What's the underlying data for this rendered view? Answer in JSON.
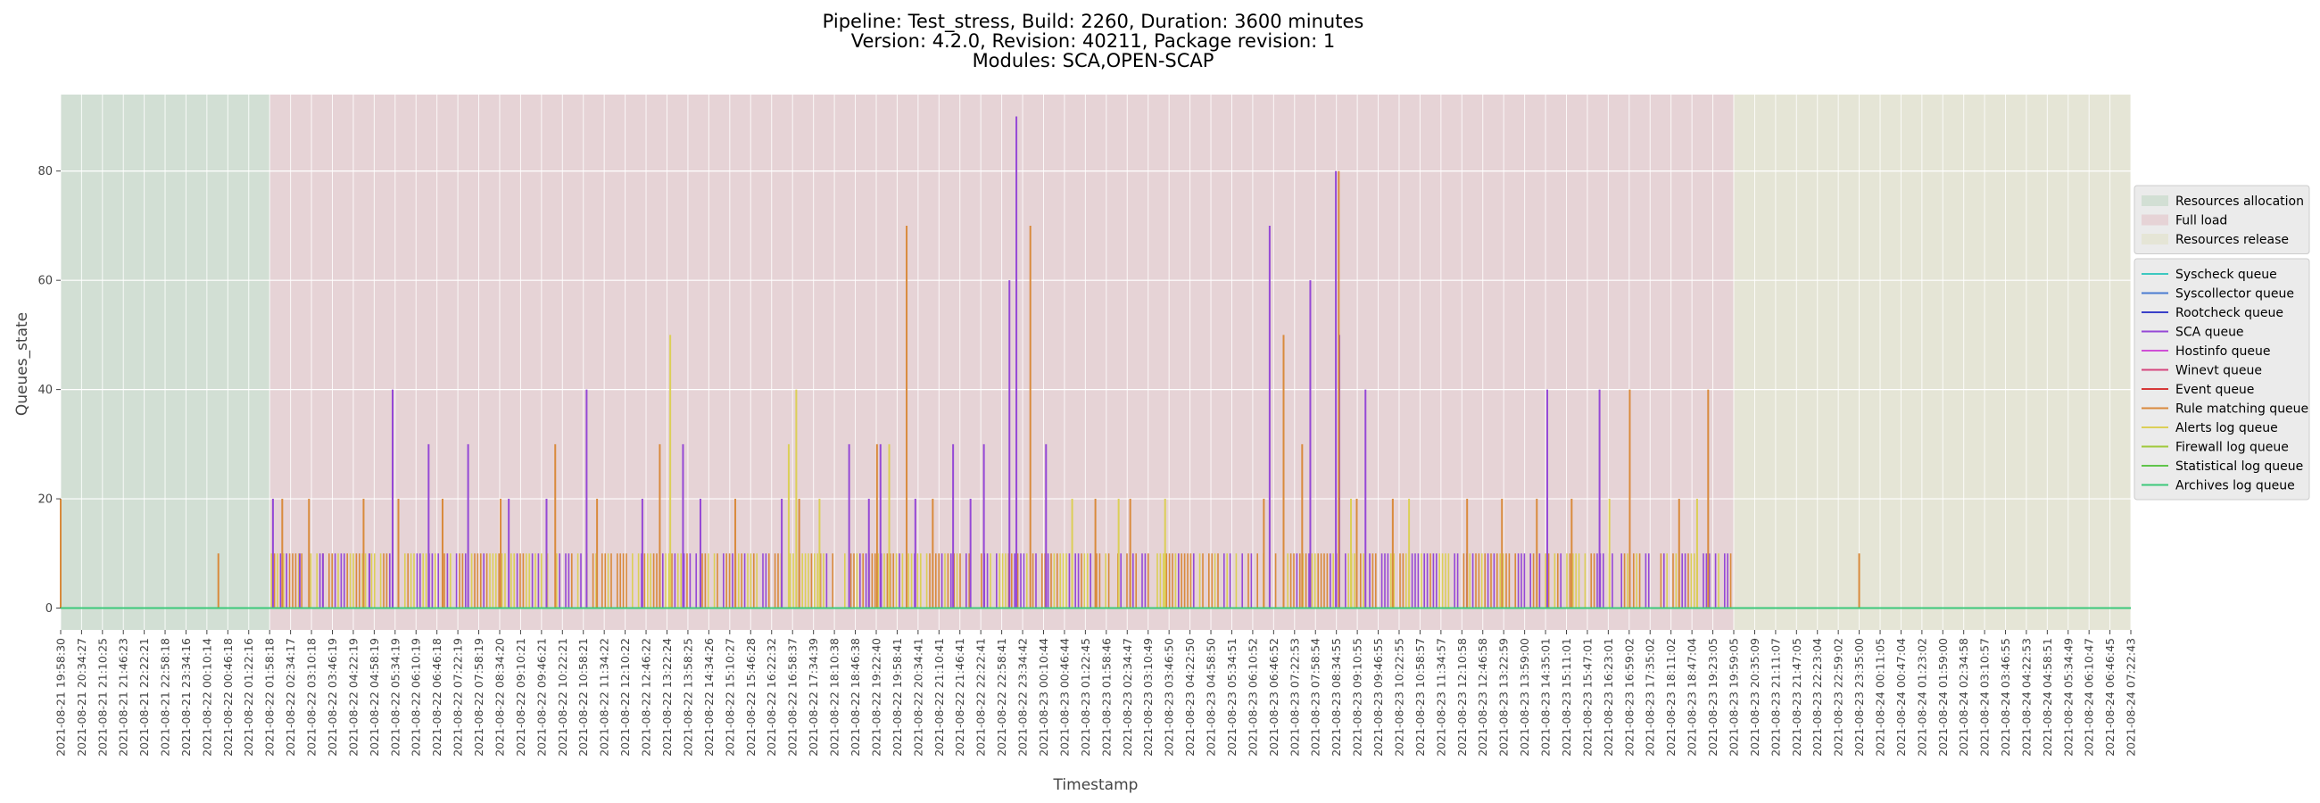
{
  "chart_data": {
    "type": "line",
    "title_lines": [
      "Pipeline: Test_stress, Build: 2260, Duration: 3600 minutes",
      "Version: 4.2.0, Revision: 40211, Package revision: 1",
      "Modules: SCA,OPEN-SCAP"
    ],
    "xlabel": "Timestamp",
    "ylabel": "Queues_state",
    "ylim": [
      -4,
      94
    ],
    "yticks": [
      0,
      20,
      40,
      60,
      80
    ],
    "grid": true,
    "legend_placement": "right",
    "x_tick_labels": [
      "2021-08-21 19:58:30",
      "2021-08-21 20:34:27",
      "2021-08-21 21:10:25",
      "2021-08-21 21:46:23",
      "2021-08-21 22:22:21",
      "2021-08-21 22:58:18",
      "2021-08-21 23:34:16",
      "2021-08-22 00:10:14",
      "2021-08-22 00:46:18",
      "2021-08-22 01:22:16",
      "2021-08-22 01:58:18",
      "2021-08-22 02:34:17",
      "2021-08-22 03:10:18",
      "2021-08-22 03:46:19",
      "2021-08-22 04:22:19",
      "2021-08-22 04:58:19",
      "2021-08-22 05:34:19",
      "2021-08-22 06:10:19",
      "2021-08-22 06:46:18",
      "2021-08-22 07:22:19",
      "2021-08-22 07:58:19",
      "2021-08-22 08:34:20",
      "2021-08-22 09:10:21",
      "2021-08-22 09:46:21",
      "2021-08-22 10:22:21",
      "2021-08-22 10:58:21",
      "2021-08-22 11:34:22",
      "2021-08-22 12:10:22",
      "2021-08-22 12:46:22",
      "2021-08-22 13:22:24",
      "2021-08-22 13:58:25",
      "2021-08-22 14:34:26",
      "2021-08-22 15:10:27",
      "2021-08-22 15:46:28",
      "2021-08-22 16:22:32",
      "2021-08-22 16:58:37",
      "2021-08-22 17:34:39",
      "2021-08-22 18:10:38",
      "2021-08-22 18:46:38",
      "2021-08-22 19:22:40",
      "2021-08-22 19:58:41",
      "2021-08-22 20:34:41",
      "2021-08-22 21:10:41",
      "2021-08-22 21:46:41",
      "2021-08-22 22:22:41",
      "2021-08-22 22:58:41",
      "2021-08-22 23:34:42",
      "2021-08-23 00:10:44",
      "2021-08-23 00:46:44",
      "2021-08-23 01:22:45",
      "2021-08-23 01:58:46",
      "2021-08-23 02:34:47",
      "2021-08-23 03:10:49",
      "2021-08-23 03:46:50",
      "2021-08-23 04:22:50",
      "2021-08-23 04:58:50",
      "2021-08-23 05:34:51",
      "2021-08-23 06:10:52",
      "2021-08-23 06:46:52",
      "2021-08-23 07:22:53",
      "2021-08-23 07:58:54",
      "2021-08-23 08:34:55",
      "2021-08-23 09:10:55",
      "2021-08-23 09:46:55",
      "2021-08-23 10:22:55",
      "2021-08-23 10:58:57",
      "2021-08-23 11:34:57",
      "2021-08-23 12:10:58",
      "2021-08-23 12:46:58",
      "2021-08-23 13:22:59",
      "2021-08-23 13:59:00",
      "2021-08-23 14:35:01",
      "2021-08-23 15:11:01",
      "2021-08-23 15:47:01",
      "2021-08-23 16:23:01",
      "2021-08-23 16:59:02",
      "2021-08-23 17:35:02",
      "2021-08-23 18:11:02",
      "2021-08-23 18:47:04",
      "2021-08-23 19:23:05",
      "2021-08-23 19:59:05",
      "2021-08-23 20:35:09",
      "2021-08-23 21:11:07",
      "2021-08-23 21:47:05",
      "2021-08-23 22:23:04",
      "2021-08-23 22:59:02",
      "2021-08-23 23:35:00",
      "2021-08-24 00:11:05",
      "2021-08-24 00:47:04",
      "2021-08-24 01:23:02",
      "2021-08-24 01:59:00",
      "2021-08-24 02:34:58",
      "2021-08-24 03:10:57",
      "2021-08-24 03:46:55",
      "2021-08-24 04:22:53",
      "2021-08-24 04:58:51",
      "2021-08-24 05:34:49",
      "2021-08-24 06:10:47",
      "2021-08-24 06:46:45",
      "2021-08-24 07:22:43"
    ],
    "phases": [
      {
        "name": "Resources allocation",
        "start": "2021-08-21 19:58:30",
        "end": "2021-08-22 01:58:18",
        "color": "#d2dfd4"
      },
      {
        "name": "Full load",
        "start": "2021-08-22 01:58:18",
        "end": "2021-08-23 19:59:05",
        "color": "#e6d3d6"
      },
      {
        "name": "Resources release",
        "start": "2021-08-23 19:59:05",
        "end": "2021-08-24 07:22:43",
        "color": "#e5e5d6"
      }
    ],
    "series": [
      {
        "name": "Syscheck queue",
        "color": "#3cc8c0",
        "values": [
          0,
          0
        ]
      },
      {
        "name": "Syscollector queue",
        "color": "#4a7bd1",
        "values": [
          0,
          0
        ]
      },
      {
        "name": "Rootcheck queue",
        "color": "#3a40c8",
        "values": [
          0,
          0
        ]
      },
      {
        "name": "SCA queue",
        "color": "#9548d6",
        "values": [
          0,
          0
        ],
        "spikes": [
          [
            "2021-08-22 02:04:00",
            20
          ],
          [
            "2021-08-22 02:50:00",
            10
          ],
          [
            "2021-08-22 03:30:00",
            10
          ],
          [
            "2021-08-22 04:50:00",
            10
          ],
          [
            "2021-08-22 05:30:00",
            40
          ],
          [
            "2021-08-22 06:32:00",
            30
          ],
          [
            "2021-08-22 07:40:00",
            30
          ],
          [
            "2021-08-22 08:50:00",
            20
          ],
          [
            "2021-08-22 09:55:00",
            20
          ],
          [
            "2021-08-22 11:04:00",
            40
          ],
          [
            "2021-08-22 12:40:00",
            20
          ],
          [
            "2021-08-22 13:50:00",
            30
          ],
          [
            "2021-08-22 14:20:00",
            20
          ],
          [
            "2021-08-22 16:40:00",
            20
          ],
          [
            "2021-08-22 18:36:00",
            30
          ],
          [
            "2021-08-22 19:10:00",
            20
          ],
          [
            "2021-08-22 19:30:00",
            30
          ],
          [
            "2021-08-22 20:30:00",
            20
          ],
          [
            "2021-08-22 21:35:00",
            30
          ],
          [
            "2021-08-22 22:05:00",
            20
          ],
          [
            "2021-08-22 22:28:00",
            30
          ],
          [
            "2021-08-22 23:12:00",
            60
          ],
          [
            "2021-08-22 23:24:00",
            90
          ],
          [
            "2021-08-23 00:15:00",
            30
          ],
          [
            "2021-08-23 06:40:00",
            70
          ],
          [
            "2021-08-23 07:50:00",
            60
          ],
          [
            "2021-08-23 08:34:00",
            80
          ],
          [
            "2021-08-23 08:40:00",
            50
          ],
          [
            "2021-08-23 09:25:00",
            40
          ],
          [
            "2021-08-23 14:38:00",
            40
          ],
          [
            "2021-08-23 16:08:00",
            40
          ]
        ]
      },
      {
        "name": "Hostinfo queue",
        "color": "#cf4fd6",
        "values": [
          0,
          0
        ]
      },
      {
        "name": "Winevt queue",
        "color": "#d6457e",
        "values": [
          0,
          0
        ]
      },
      {
        "name": "Event queue",
        "color": "#d63838",
        "values": [
          0,
          0
        ]
      },
      {
        "name": "Rule matching queue",
        "color": "#d98a3c",
        "values": [
          0,
          0
        ],
        "spikes": [
          [
            "2021-08-21 19:58:30",
            20
          ],
          [
            "2021-08-22 00:30:00",
            10
          ],
          [
            "2021-08-22 02:20:00",
            20
          ],
          [
            "2021-08-22 03:06:00",
            20
          ],
          [
            "2021-08-22 04:40:00",
            20
          ],
          [
            "2021-08-22 05:40:00",
            20
          ],
          [
            "2021-08-22 06:56:00",
            20
          ],
          [
            "2021-08-22 08:36:00",
            20
          ],
          [
            "2021-08-22 10:10:00",
            30
          ],
          [
            "2021-08-22 11:22:00",
            20
          ],
          [
            "2021-08-22 13:10:00",
            30
          ],
          [
            "2021-08-22 15:20:00",
            20
          ],
          [
            "2021-08-22 17:10:00",
            20
          ],
          [
            "2021-08-22 19:24:00",
            30
          ],
          [
            "2021-08-22 20:15:00",
            70
          ],
          [
            "2021-08-22 21:00:00",
            20
          ],
          [
            "2021-08-22 23:48:00",
            70
          ],
          [
            "2021-08-23 01:40:00",
            20
          ],
          [
            "2021-08-23 02:40:00",
            20
          ],
          [
            "2021-08-23 06:30:00",
            20
          ],
          [
            "2021-08-23 07:04:00",
            50
          ],
          [
            "2021-08-23 07:36:00",
            30
          ],
          [
            "2021-08-23 08:39:00",
            80
          ],
          [
            "2021-08-23 09:10:00",
            20
          ],
          [
            "2021-08-23 10:12:00",
            20
          ],
          [
            "2021-08-23 12:20:00",
            20
          ],
          [
            "2021-08-23 13:20:00",
            20
          ],
          [
            "2021-08-23 14:20:00",
            20
          ],
          [
            "2021-08-23 15:20:00",
            20
          ],
          [
            "2021-08-23 17:00:00",
            40
          ],
          [
            "2021-08-23 18:25:00",
            20
          ],
          [
            "2021-08-23 19:15:00",
            40
          ],
          [
            "2021-08-23 23:35:00",
            10
          ]
        ]
      },
      {
        "name": "Alerts log queue",
        "color": "#dccf57",
        "values": [
          0,
          0
        ],
        "spikes": [
          [
            "2021-08-22 13:28:00",
            50
          ],
          [
            "2021-08-22 16:52:00",
            30
          ],
          [
            "2021-08-22 17:05:00",
            40
          ],
          [
            "2021-08-22 17:45:00",
            20
          ],
          [
            "2021-08-22 19:45:00",
            30
          ],
          [
            "2021-08-23 01:00:00",
            20
          ],
          [
            "2021-08-23 02:20:00",
            20
          ],
          [
            "2021-08-23 03:40:00",
            20
          ],
          [
            "2021-08-23 09:00:00",
            20
          ],
          [
            "2021-08-23 10:40:00",
            20
          ],
          [
            "2021-08-23 16:25:00",
            20
          ],
          [
            "2021-08-23 18:56:00",
            20
          ]
        ]
      },
      {
        "name": "Firewall log queue",
        "color": "#a0c93c",
        "values": [
          0,
          0
        ]
      },
      {
        "name": "Statistical log queue",
        "color": "#5fc44a",
        "values": [
          0,
          0
        ]
      },
      {
        "name": "Archives log queue",
        "color": "#3cc87a",
        "values": [
          0,
          0
        ]
      }
    ],
    "baseline_spike_value": 10
  }
}
